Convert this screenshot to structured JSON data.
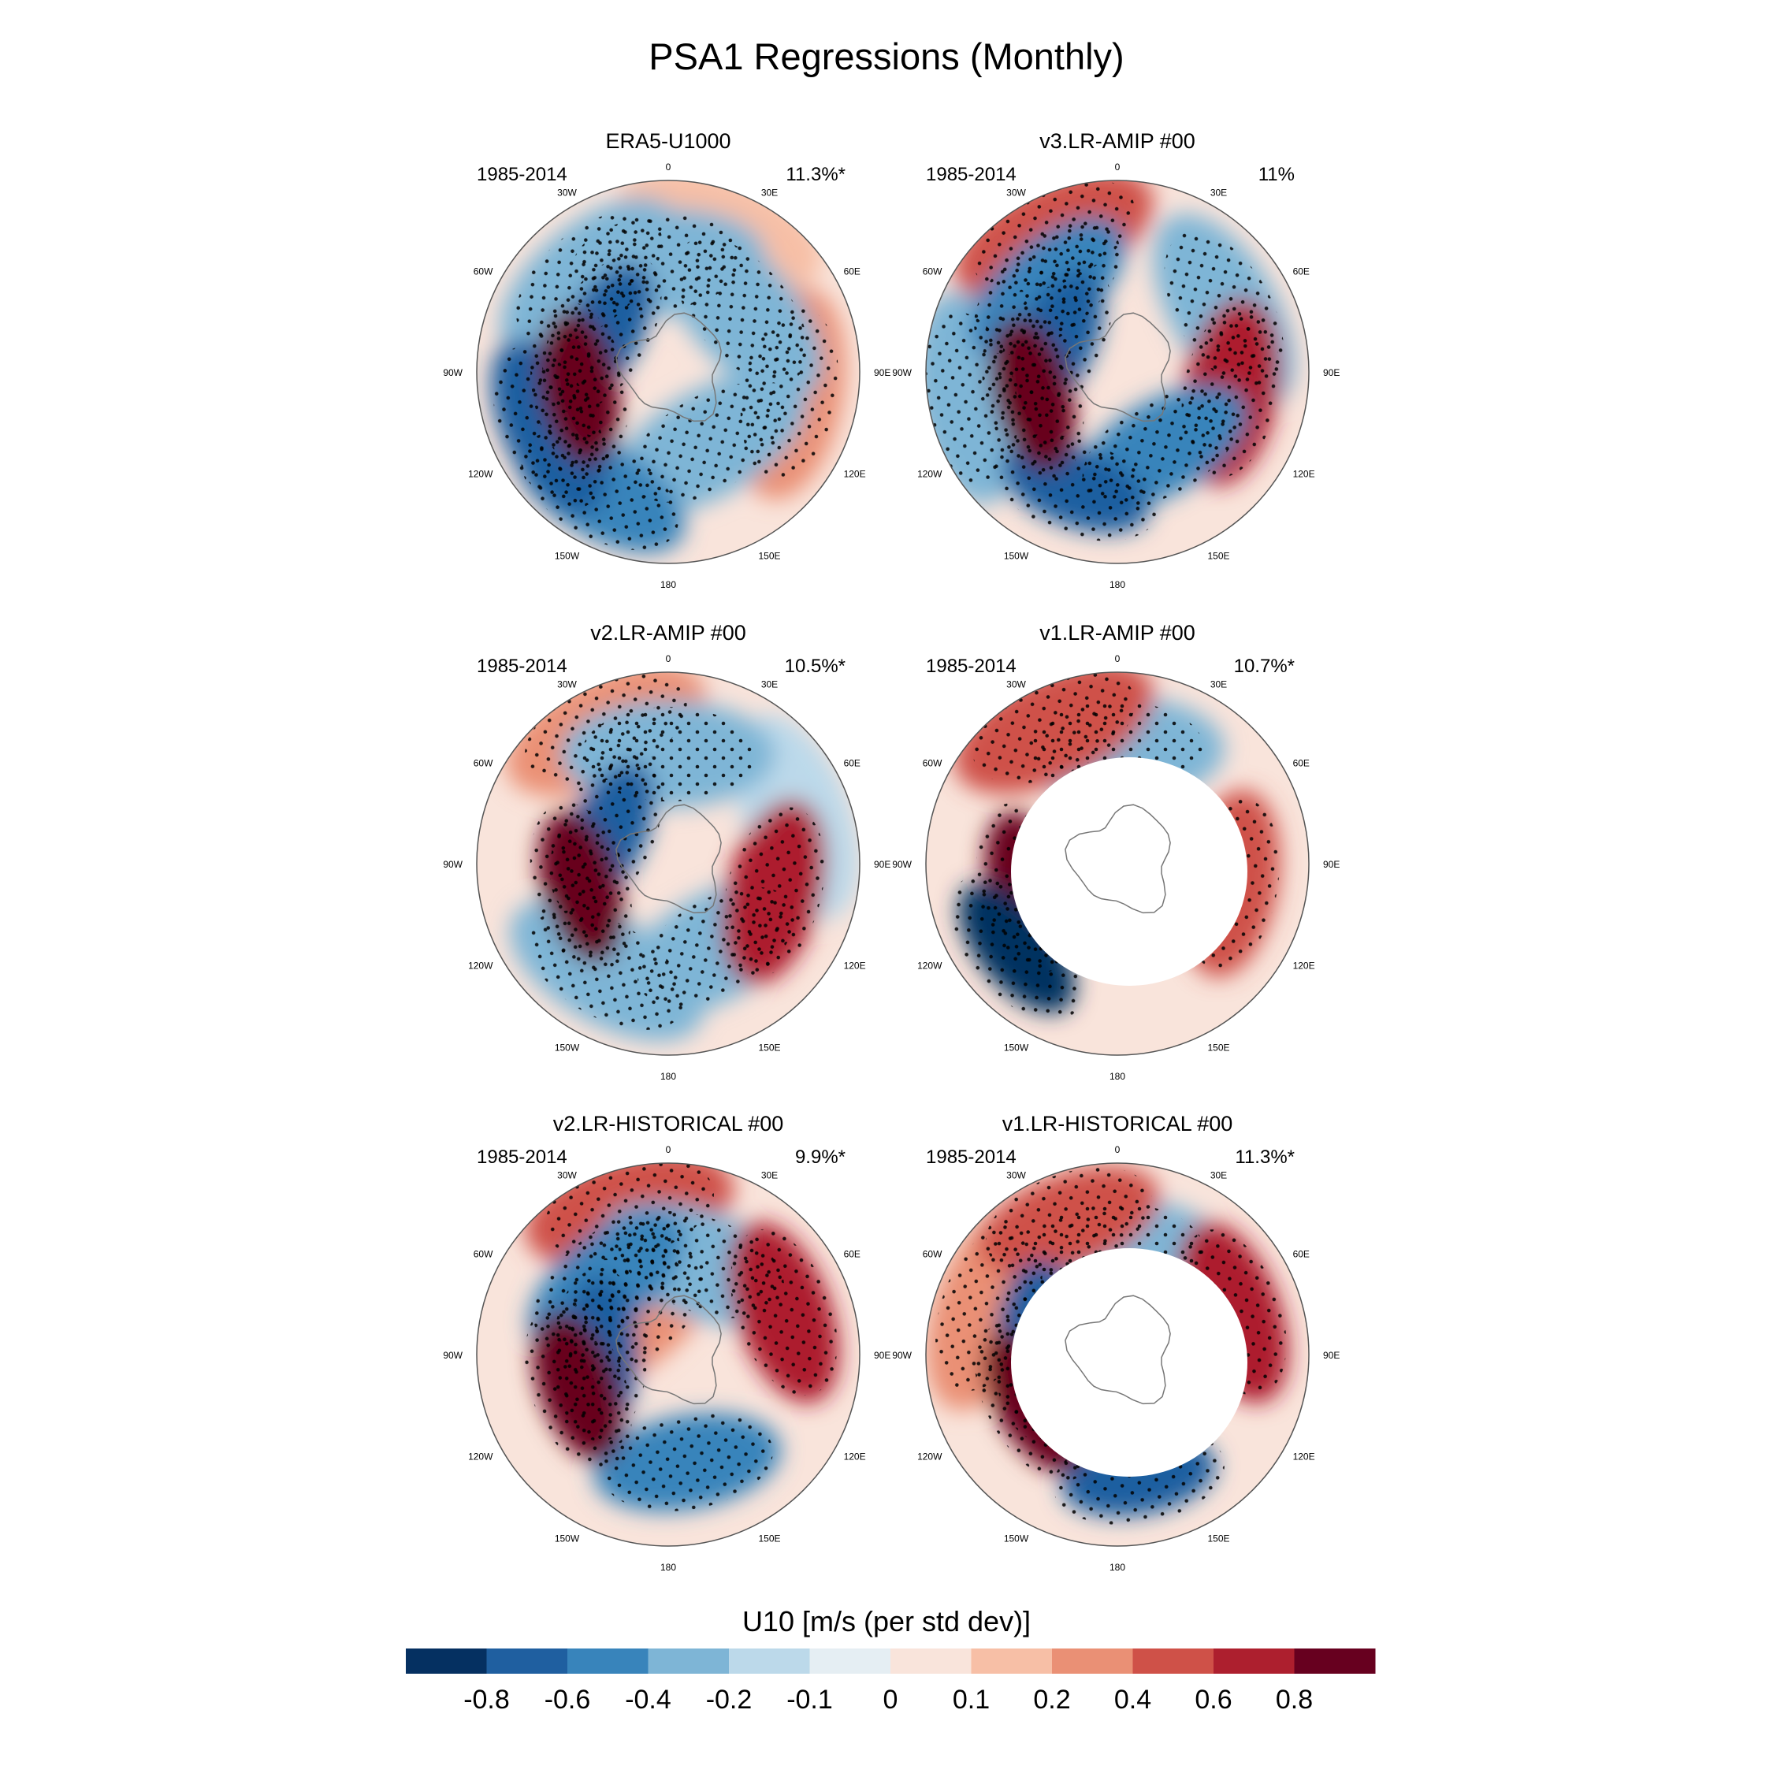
{
  "title": "PSA1 Regressions (Monthly)",
  "colorbar": {
    "label": "U10 [m/s (per std dev)]",
    "tick_labels": [
      "-0.8",
      "-0.6",
      "-0.4",
      "-0.2",
      "-0.1",
      "0",
      "0.1",
      "0.2",
      "0.4",
      "0.6",
      "0.8"
    ],
    "colors": [
      "#053061",
      "#1f5fa0",
      "#3884bb",
      "#7eb5d6",
      "#bcd9ea",
      "#e5eef3",
      "#f9e4db",
      "#f7bfa6",
      "#ea9075",
      "#cf5148",
      "#ad1f2e",
      "#67001f"
    ]
  },
  "panels": [
    {
      "title": "ERA5-U1000",
      "period": "1985-2014",
      "percent": "11.3%*",
      "masked": false
    },
    {
      "title": "v3.LR-AMIP  #00",
      "period": "1985-2014",
      "percent": "11%",
      "masked": false
    },
    {
      "title": "v2.LR-AMIP  #00",
      "period": "1985-2014",
      "percent": "10.5%*",
      "masked": false
    },
    {
      "title": "v1.LR-AMIP  #00",
      "period": "1985-2014",
      "percent": "10.7%*",
      "masked": true
    },
    {
      "title": "v2.LR-HISTORICAL  #00",
      "period": "1985-2014",
      "percent": "9.9%*",
      "masked": false
    },
    {
      "title": "v1.LR-HISTORICAL  #00",
      "period": "1985-2014",
      "percent": "11.3%*",
      "masked": true
    }
  ],
  "longitude_labels": [
    "0",
    "30E",
    "60E",
    "90E",
    "120E",
    "150E",
    "180",
    "150W",
    "120W",
    "90W",
    "60W",
    "30W"
  ],
  "chart_data": {
    "type": "heatmap",
    "title": "PSA1 Regressions (Monthly)",
    "variable": "U10",
    "units": "m/s (per std dev)",
    "levels": [
      -0.8,
      -0.6,
      -0.4,
      -0.2,
      -0.1,
      0,
      0.1,
      0.2,
      0.4,
      0.6,
      0.8
    ],
    "projection": "South polar stereographic",
    "panels": [
      {
        "name": "ERA5-U1000",
        "period": "1985-2014",
        "explained_variance": "11.3%*",
        "features": [
          {
            "lon": -100,
            "lat": -57,
            "value": 0.9
          },
          {
            "lon": -115,
            "lat": -42,
            "value": -0.7
          },
          {
            "lon": -150,
            "lat": -40,
            "value": -0.6
          },
          {
            "lon": -60,
            "lat": -62,
            "value": -0.8
          },
          {
            "lon": -40,
            "lat": -45,
            "value": -0.4
          },
          {
            "lon": 100,
            "lat": -45,
            "value": 0.3
          },
          {
            "lon": 20,
            "lat": -35,
            "value": 0.1
          },
          {
            "lon": -5,
            "lat": -50,
            "value": -0.3
          },
          {
            "lon": 50,
            "lat": -55,
            "value": -0.3
          },
          {
            "lon": 150,
            "lat": -60,
            "value": -0.3
          }
        ]
      },
      {
        "name": "v3.LR-AMIP  #00",
        "period": "1985-2014",
        "explained_variance": "11%",
        "features": [
          {
            "lon": -105,
            "lat": -58,
            "value": 0.9
          },
          {
            "lon": -160,
            "lat": -45,
            "value": -0.8
          },
          {
            "lon": -65,
            "lat": -65,
            "value": -0.8
          },
          {
            "lon": -25,
            "lat": -35,
            "value": 0.4
          },
          {
            "lon": 100,
            "lat": -48,
            "value": 0.6
          },
          {
            "lon": 60,
            "lat": -45,
            "value": -0.3
          },
          {
            "lon": -40,
            "lat": -50,
            "value": -0.5
          },
          {
            "lon": 150,
            "lat": -58,
            "value": -0.6
          },
          {
            "lon": -100,
            "lat": -35,
            "value": -0.3
          }
        ]
      },
      {
        "name": "v2.LR-AMIP  #00",
        "period": "1985-2014",
        "explained_variance": "10.5%*",
        "features": [
          {
            "lon": -105,
            "lat": -57,
            "value": 0.9
          },
          {
            "lon": -65,
            "lat": -65,
            "value": -0.8
          },
          {
            "lon": -25,
            "lat": -36,
            "value": 0.3
          },
          {
            "lon": 105,
            "lat": -50,
            "value": 0.6
          },
          {
            "lon": 0,
            "lat": -50,
            "value": -0.3
          },
          {
            "lon": -150,
            "lat": -45,
            "value": -0.4
          },
          {
            "lon": 150,
            "lat": -55,
            "value": -0.4
          },
          {
            "lon": 70,
            "lat": -40,
            "value": -0.2
          }
        ]
      },
      {
        "name": "v1.LR-AMIP  #00",
        "period": "1985-2014",
        "explained_variance": "10.7%*",
        "features": [
          {
            "lon": -105,
            "lat": -56,
            "value": 0.9
          },
          {
            "lon": -130,
            "lat": -42,
            "value": -0.9
          },
          {
            "lon": -25,
            "lat": -35,
            "value": 0.4
          },
          {
            "lon": 100,
            "lat": -48,
            "value": 0.5
          },
          {
            "lon": 0,
            "lat": -48,
            "value": -0.3
          }
        ]
      },
      {
        "name": "v2.LR-HISTORICAL  #00",
        "period": "1985-2014",
        "explained_variance": "9.9%*",
        "features": [
          {
            "lon": -110,
            "lat": -55,
            "value": 0.9
          },
          {
            "lon": 70,
            "lat": -45,
            "value": 0.7
          },
          {
            "lon": -15,
            "lat": -35,
            "value": 0.4
          },
          {
            "lon": -40,
            "lat": -55,
            "value": -0.6
          },
          {
            "lon": -90,
            "lat": -65,
            "value": -0.8
          },
          {
            "lon": 170,
            "lat": -50,
            "value": -0.5
          },
          {
            "lon": 20,
            "lat": -55,
            "value": -0.4
          },
          {
            "lon": -40,
            "lat": -70,
            "value": 0.3
          }
        ]
      },
      {
        "name": "v1.LR-HISTORICAL  #00",
        "period": "1985-2014",
        "explained_variance": "11.3%*",
        "features": [
          {
            "lon": -120,
            "lat": -55,
            "value": 0.9
          },
          {
            "lon": 70,
            "lat": -45,
            "value": 0.7
          },
          {
            "lon": -20,
            "lat": -38,
            "value": 0.5
          },
          {
            "lon": -90,
            "lat": -62,
            "value": -0.7
          },
          {
            "lon": 170,
            "lat": -45,
            "value": -0.8
          },
          {
            "lon": 0,
            "lat": -52,
            "value": -0.3
          },
          {
            "lon": -70,
            "lat": -40,
            "value": 0.3
          }
        ]
      }
    ]
  }
}
